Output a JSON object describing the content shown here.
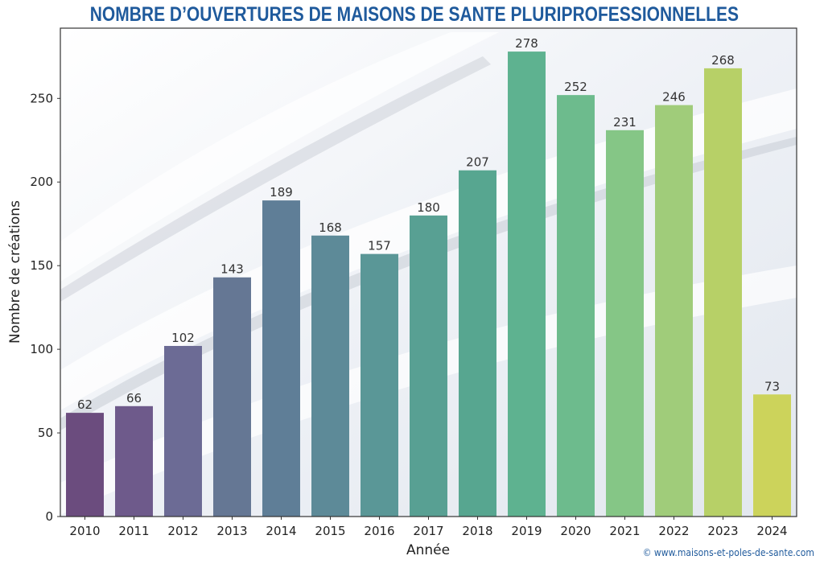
{
  "chart_data": {
    "type": "bar",
    "title": "NOMBRE D’OUVERTURES DE MAISONS DE SANTE PLURIPROFESSIONNELLES",
    "xlabel": "Année",
    "ylabel": "Nombre de créations",
    "categories": [
      "2010",
      "2011",
      "2012",
      "2013",
      "2014",
      "2015",
      "2016",
      "2017",
      "2018",
      "2019",
      "2020",
      "2021",
      "2022",
      "2023",
      "2024"
    ],
    "values": [
      62,
      66,
      102,
      143,
      189,
      168,
      157,
      180,
      207,
      278,
      252,
      231,
      246,
      268,
      73
    ],
    "bar_colors": [
      "#6b4c7e",
      "#6e5a8b",
      "#6c6b95",
      "#657794",
      "#5f7e97",
      "#5d8a98",
      "#5a9797",
      "#58a093",
      "#57a690",
      "#5eb290",
      "#6dbb8d",
      "#85c686",
      "#a0cc7a",
      "#b7d067",
      "#ccd35b"
    ],
    "yticks": [
      0,
      50,
      100,
      150,
      200,
      250
    ],
    "ylim": [
      0,
      292
    ],
    "grid": false,
    "legend": "none"
  },
  "credit": "© www.maisons-et-poles-de-sante.com"
}
